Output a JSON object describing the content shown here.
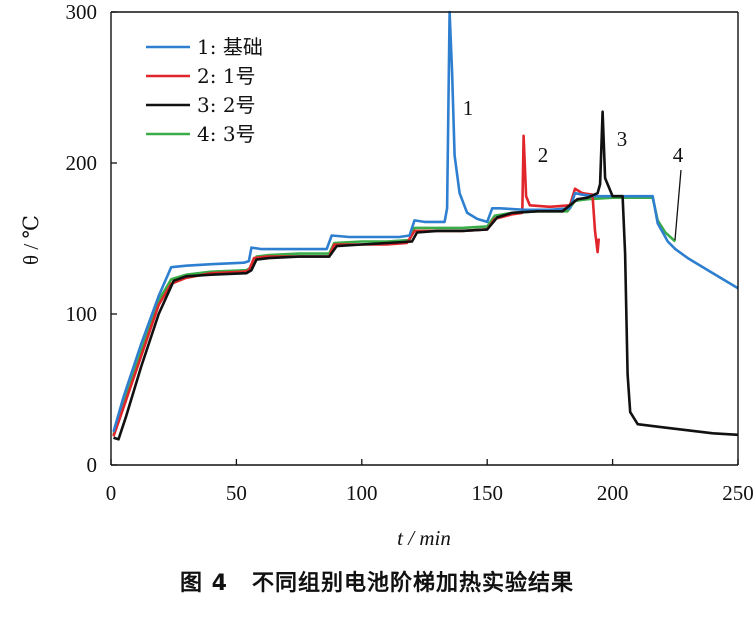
{
  "chart_data": {
    "type": "line",
    "title": "",
    "xlabel": "t / min",
    "ylabel": "θ / ℃",
    "xlim": [
      0,
      250
    ],
    "ylim": [
      0,
      300
    ],
    "xticks": [
      "0",
      "50",
      "100",
      "150",
      "200",
      "250"
    ],
    "yticks": [
      "0",
      "100",
      "200",
      "300"
    ],
    "grid": false,
    "legend": "top-left",
    "colors": {
      "s1": "#2e7fd0",
      "s2": "#e0262b",
      "s3": "#111111",
      "s4": "#3aac48"
    },
    "series": [
      {
        "name": "1: 基础",
        "color": "#2e7fd0",
        "points": [
          [
            1,
            22
          ],
          [
            5,
            45
          ],
          [
            12,
            80
          ],
          [
            19,
            112
          ],
          [
            24,
            131
          ],
          [
            30,
            132
          ],
          [
            40,
            133
          ],
          [
            53,
            134
          ],
          [
            55,
            135
          ],
          [
            56,
            144
          ],
          [
            60,
            143
          ],
          [
            70,
            143
          ],
          [
            80,
            143
          ],
          [
            86,
            143
          ],
          [
            88,
            152
          ],
          [
            95,
            151
          ],
          [
            105,
            151
          ],
          [
            115,
            151
          ],
          [
            119,
            152
          ],
          [
            121,
            162
          ],
          [
            125,
            161
          ],
          [
            130,
            161
          ],
          [
            133,
            161
          ],
          [
            134,
            170
          ],
          [
            135,
            300
          ],
          [
            136,
            260
          ],
          [
            137,
            205
          ],
          [
            139,
            180
          ],
          [
            142,
            167
          ],
          [
            146,
            163
          ],
          [
            150,
            161
          ],
          [
            152,
            170
          ],
          [
            155,
            170
          ],
          [
            165,
            169
          ],
          [
            175,
            169
          ],
          [
            183,
            170
          ],
          [
            185,
            180
          ],
          [
            188,
            179
          ],
          [
            193,
            178
          ],
          [
            200,
            178
          ],
          [
            210,
            178
          ],
          [
            216,
            178
          ],
          [
            218,
            160
          ],
          [
            222,
            148
          ],
          [
            225,
            143
          ],
          [
            230,
            137
          ],
          [
            240,
            127
          ],
          [
            250,
            117
          ]
        ]
      },
      {
        "name": "2: 1号",
        "color": "#e0262b",
        "points": [
          [
            1,
            19
          ],
          [
            5,
            38
          ],
          [
            12,
            72
          ],
          [
            19,
            106
          ],
          [
            24,
            120
          ],
          [
            30,
            124
          ],
          [
            40,
            127
          ],
          [
            53,
            128
          ],
          [
            55,
            129
          ],
          [
            57,
            137
          ],
          [
            62,
            138
          ],
          [
            75,
            138
          ],
          [
            87,
            138
          ],
          [
            89,
            146
          ],
          [
            100,
            146
          ],
          [
            110,
            146
          ],
          [
            118,
            147
          ],
          [
            121,
            155
          ],
          [
            130,
            155
          ],
          [
            140,
            155
          ],
          [
            150,
            156
          ],
          [
            153,
            163
          ],
          [
            160,
            166
          ],
          [
            164,
            167
          ],
          [
            164.5,
            218
          ],
          [
            165.5,
            178
          ],
          [
            167,
            172
          ],
          [
            175,
            171
          ],
          [
            183,
            172
          ],
          [
            185,
            183
          ],
          [
            188,
            180
          ],
          [
            192,
            179
          ],
          [
            193,
            155
          ],
          [
            194,
            141
          ],
          [
            194.5,
            150
          ]
        ]
      },
      {
        "name": "3: 2号",
        "color": "#111111",
        "points": [
          [
            1,
            18
          ],
          [
            3,
            17
          ],
          [
            6,
            32
          ],
          [
            12,
            65
          ],
          [
            19,
            100
          ],
          [
            25,
            122
          ],
          [
            30,
            125
          ],
          [
            40,
            126
          ],
          [
            54,
            127
          ],
          [
            56,
            129
          ],
          [
            58,
            136
          ],
          [
            63,
            137
          ],
          [
            75,
            138
          ],
          [
            87,
            138
          ],
          [
            90,
            145
          ],
          [
            100,
            146
          ],
          [
            110,
            147
          ],
          [
            120,
            148
          ],
          [
            122,
            154
          ],
          [
            130,
            155
          ],
          [
            140,
            155
          ],
          [
            150,
            156
          ],
          [
            154,
            164
          ],
          [
            160,
            167
          ],
          [
            170,
            168
          ],
          [
            180,
            168
          ],
          [
            186,
            176
          ],
          [
            190,
            177
          ],
          [
            194,
            180
          ],
          [
            195,
            186
          ],
          [
            196,
            234
          ],
          [
            197,
            190
          ],
          [
            200,
            178
          ],
          [
            204,
            178
          ],
          [
            205,
            140
          ],
          [
            206,
            60
          ],
          [
            207,
            35
          ],
          [
            210,
            27
          ],
          [
            220,
            25
          ],
          [
            230,
            23
          ],
          [
            240,
            21
          ],
          [
            250,
            20
          ]
        ]
      },
      {
        "name": "4: 3号",
        "color": "#3aac48",
        "points": [
          [
            1,
            20
          ],
          [
            5,
            40
          ],
          [
            12,
            75
          ],
          [
            19,
            109
          ],
          [
            24,
            123
          ],
          [
            30,
            126
          ],
          [
            40,
            128
          ],
          [
            54,
            129
          ],
          [
            56,
            131
          ],
          [
            58,
            138
          ],
          [
            63,
            139
          ],
          [
            75,
            140
          ],
          [
            87,
            140
          ],
          [
            89,
            147
          ],
          [
            100,
            148
          ],
          [
            110,
            148
          ],
          [
            119,
            149
          ],
          [
            121,
            157
          ],
          [
            130,
            157
          ],
          [
            140,
            157
          ],
          [
            150,
            158
          ],
          [
            153,
            165
          ],
          [
            160,
            167
          ],
          [
            170,
            168
          ],
          [
            182,
            168
          ],
          [
            185,
            175
          ],
          [
            190,
            176
          ],
          [
            200,
            177
          ],
          [
            210,
            177
          ],
          [
            216,
            177
          ],
          [
            218,
            162
          ],
          [
            221,
            154
          ],
          [
            225,
            148
          ]
        ]
      }
    ],
    "annotations": [
      "1",
      "2",
      "3",
      "4"
    ]
  },
  "caption": {
    "figure": "图 4",
    "text": "不同组别电池阶梯加热实验结果"
  }
}
